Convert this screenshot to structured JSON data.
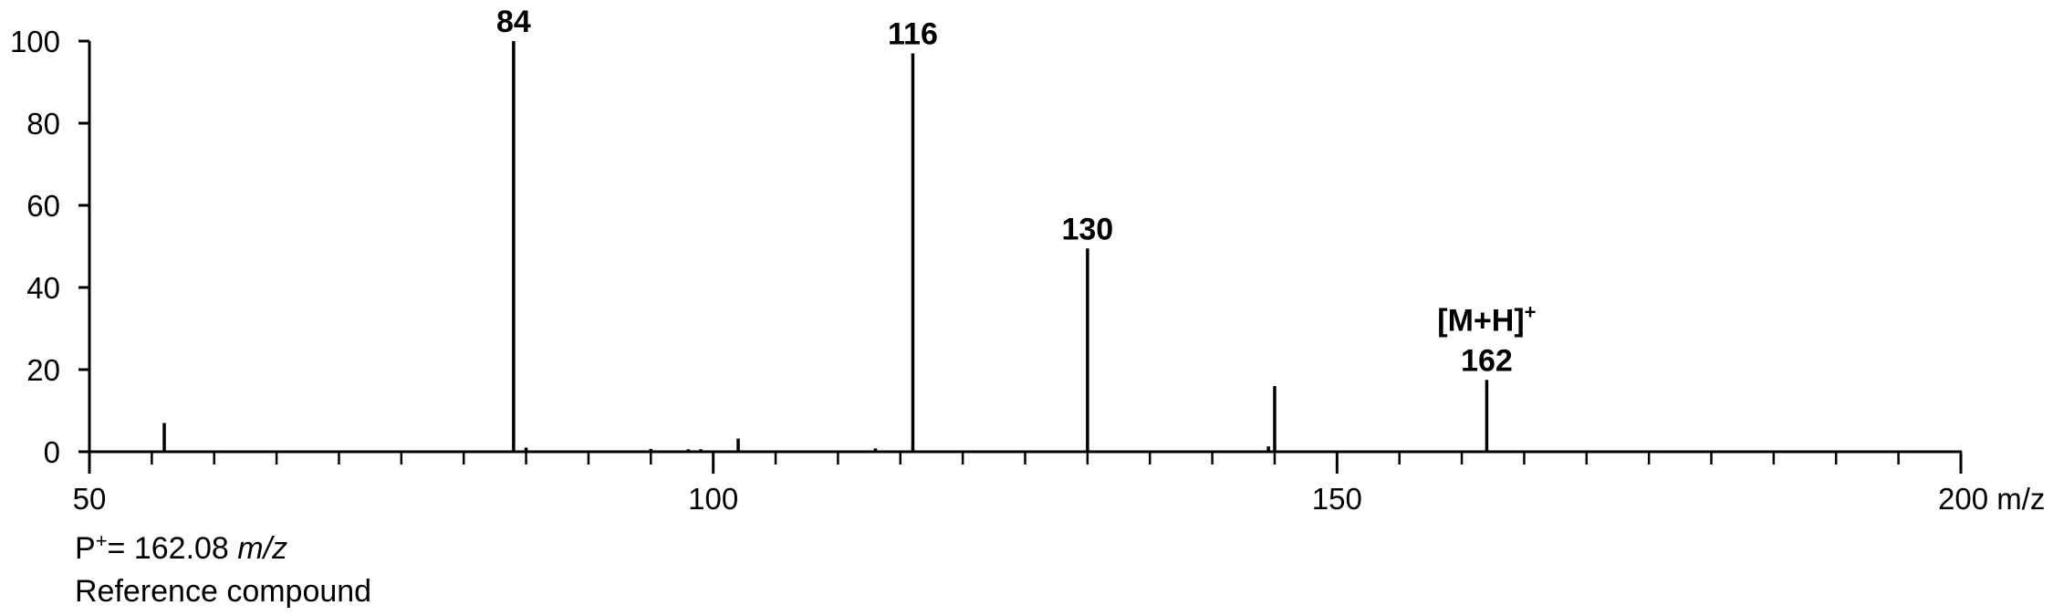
{
  "chart_data": {
    "type": "bar",
    "xlabel": "m/z",
    "ylabel": "",
    "xlim": [
      50,
      200
    ],
    "ylim": [
      0,
      100
    ],
    "x_ticks": [
      50,
      100,
      150,
      200
    ],
    "x_tick_labels": [
      "50",
      "100",
      "150",
      "200 m/z"
    ],
    "x_minor_step": 5,
    "y_ticks": [
      0,
      20,
      40,
      60,
      80,
      100
    ],
    "grid": false,
    "peaks": [
      {
        "mz": 56,
        "intensity": 7
      },
      {
        "mz": 84,
        "intensity": 100
      },
      {
        "mz": 85,
        "intensity": 1
      },
      {
        "mz": 95,
        "intensity": 0.7
      },
      {
        "mz": 98,
        "intensity": 0.6
      },
      {
        "mz": 99,
        "intensity": 0.6
      },
      {
        "mz": 102,
        "intensity": 3.2
      },
      {
        "mz": 113,
        "intensity": 0.8
      },
      {
        "mz": 116,
        "intensity": 97
      },
      {
        "mz": 130,
        "intensity": 49.5
      },
      {
        "mz": 144.5,
        "intensity": 1.3
      },
      {
        "mz": 145,
        "intensity": 16
      },
      {
        "mz": 162,
        "intensity": 17.5
      }
    ],
    "peak_labels": [
      {
        "mz": 84,
        "intensity": 100,
        "lines": [
          "84"
        ]
      },
      {
        "mz": 116,
        "intensity": 97,
        "lines": [
          "116"
        ]
      },
      {
        "mz": 130,
        "intensity": 49.5,
        "lines": [
          "130"
        ]
      },
      {
        "mz": 162,
        "intensity": 17.5,
        "lines": [
          "[M+H]",
          "162"
        ],
        "superscript": "+"
      }
    ]
  },
  "caption": {
    "parent_prefix": "P",
    "parent_sup": "+",
    "parent_eq": "=  162.08 ",
    "parent_unit": "m/z",
    "subtitle": "Reference compound"
  }
}
